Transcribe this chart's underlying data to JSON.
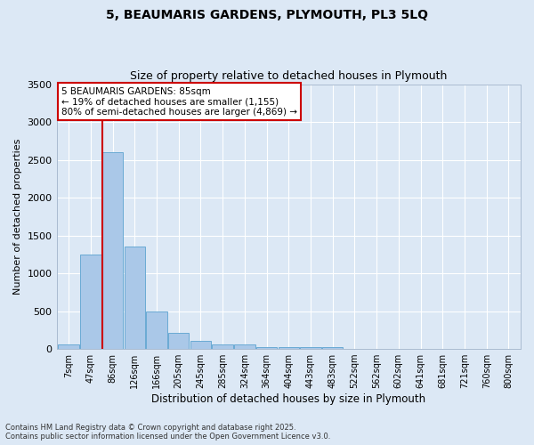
{
  "title1": "5, BEAUMARIS GARDENS, PLYMOUTH, PL3 5LQ",
  "title2": "Size of property relative to detached houses in Plymouth",
  "xlabel": "Distribution of detached houses by size in Plymouth",
  "ylabel": "Number of detached properties",
  "categories": [
    "7sqm",
    "47sqm",
    "86sqm",
    "126sqm",
    "166sqm",
    "205sqm",
    "245sqm",
    "285sqm",
    "324sqm",
    "364sqm",
    "404sqm",
    "443sqm",
    "483sqm",
    "522sqm",
    "562sqm",
    "602sqm",
    "641sqm",
    "681sqm",
    "721sqm",
    "760sqm",
    "800sqm"
  ],
  "values": [
    55,
    1250,
    2600,
    1350,
    500,
    210,
    105,
    55,
    55,
    20,
    20,
    20,
    20,
    0,
    0,
    0,
    0,
    0,
    0,
    0,
    0
  ],
  "bar_color": "#aac8e8",
  "bar_edge_color": "#6aaad4",
  "bg_color": "#dce8f5",
  "grid_color": "#ffffff",
  "ylim": [
    0,
    3500
  ],
  "yticks": [
    0,
    500,
    1000,
    1500,
    2000,
    2500,
    3000,
    3500
  ],
  "annotation_text": "5 BEAUMARIS GARDENS: 85sqm\n← 19% of detached houses are smaller (1,155)\n80% of semi-detached houses are larger (4,869) →",
  "annotation_box_color": "#ffffff",
  "annotation_box_edge": "#cc0000",
  "redline_bar_index": 2,
  "footnote1": "Contains HM Land Registry data © Crown copyright and database right 2025.",
  "footnote2": "Contains public sector information licensed under the Open Government Licence v3.0."
}
